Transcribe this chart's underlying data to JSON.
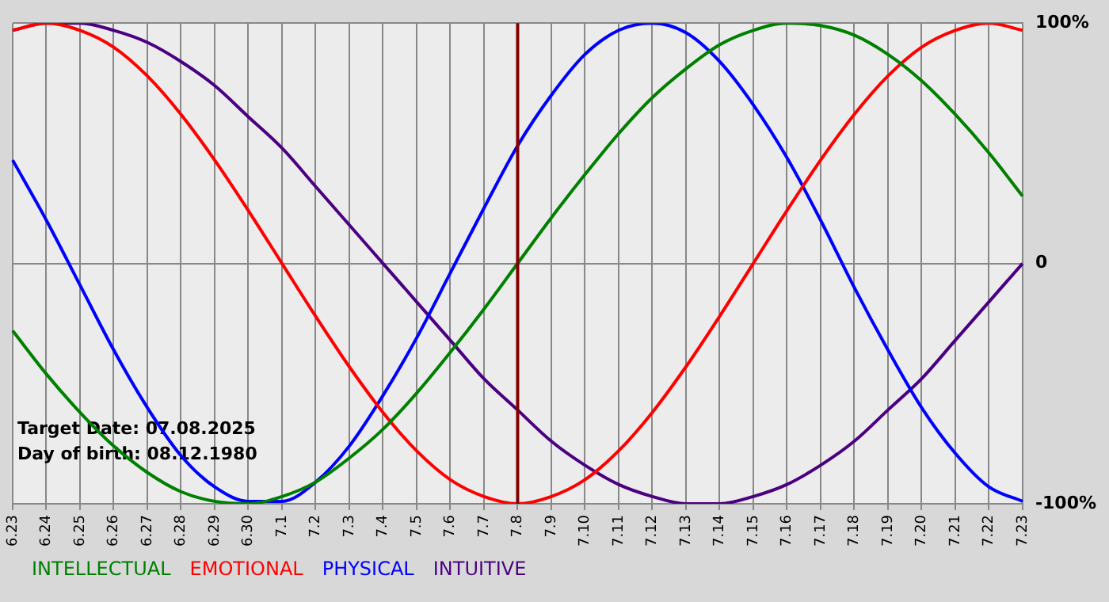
{
  "chart_data": {
    "type": "line",
    "categories": [
      "6.23",
      "6.24",
      "6.25",
      "6.26",
      "6.27",
      "6.28",
      "6.29",
      "6.30",
      "7.1",
      "7.2",
      "7.3",
      "7.4",
      "7.5",
      "7.6",
      "7.7",
      "7.8",
      "7.9",
      "7.10",
      "7.11",
      "7.12",
      "7.13",
      "7.14",
      "7.15",
      "7.16",
      "7.17",
      "7.18",
      "7.19",
      "7.20",
      "7.21",
      "7.22",
      "7.23"
    ],
    "series": [
      {
        "name": "INTELLECTUAL",
        "color": "#008000",
        "values": [
          -28,
          -46,
          -62,
          -76,
          -87,
          -95,
          -99,
          -100,
          -97,
          -91,
          -81,
          -69,
          -54,
          -37,
          -19,
          0,
          19,
          37,
          54,
          69,
          81,
          91,
          97,
          100,
          99,
          95,
          87,
          76,
          62,
          46,
          28
        ]
      },
      {
        "name": "EMOTIONAL",
        "color": "#ff0000",
        "values": [
          97,
          100,
          97,
          90,
          78,
          62,
          43,
          22,
          0,
          -22,
          -43,
          -62,
          -78,
          -90,
          -97,
          -100,
          -97,
          -90,
          -78,
          -62,
          -43,
          -22,
          0,
          22,
          43,
          62,
          78,
          90,
          97,
          100,
          97
        ]
      },
      {
        "name": "PHYSICAL",
        "color": "#0000ff",
        "values": [
          43,
          18,
          -9,
          -36,
          -60,
          -80,
          -93,
          -99,
          -99,
          -91,
          -76,
          -55,
          -31,
          -4,
          23,
          49,
          70,
          87,
          97,
          100,
          96,
          84,
          66,
          44,
          18,
          -10,
          -36,
          -60,
          -79,
          -93,
          -99
        ]
      },
      {
        "name": "INTUITIVE",
        "color": "#4b0082",
        "values": [
          97,
          100,
          100,
          97,
          92,
          84,
          74,
          61,
          48,
          32,
          16,
          0,
          -16,
          -32,
          -48,
          -61,
          -74,
          -84,
          -92,
          -97,
          -100,
          -100,
          -97,
          -92,
          -84,
          -74,
          -61,
          -48,
          -32,
          -16,
          0
        ]
      }
    ],
    "ylim": [
      -100,
      100
    ],
    "yticks": [
      {
        "value": -100,
        "label": "-100%"
      },
      0,
      {
        "value": 100,
        "label": "100%"
      }
    ],
    "ref_lines": [
      {
        "axis": "x",
        "value": "7.8",
        "color": "#800000"
      }
    ],
    "annotations": [
      "Target Date: 07.08.2025",
      "Day of birth: 08.12.1980"
    ],
    "grid": true,
    "legend": "bottom",
    "marker": "none",
    "line_style": "solid"
  }
}
